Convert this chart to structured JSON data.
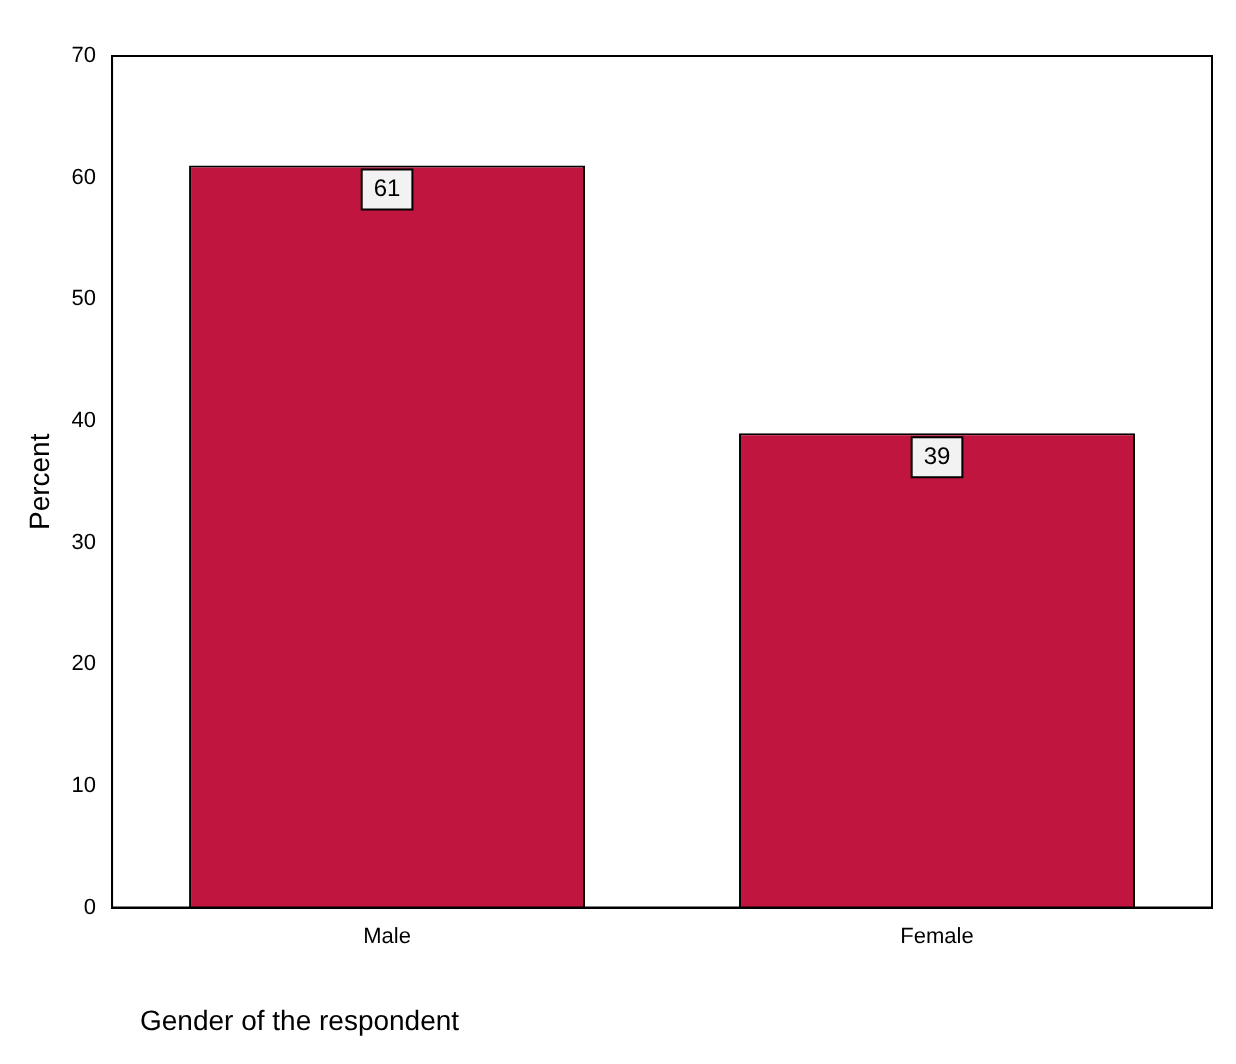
{
  "chart_data": {
    "type": "bar",
    "categories": [
      "Male",
      "Female"
    ],
    "values": [
      61,
      39
    ],
    "color": "#c0153f",
    "ylim": [
      0,
      70
    ],
    "yticks": [
      0,
      10,
      20,
      30,
      40,
      50,
      60,
      70
    ],
    "ylabel": "Percent",
    "xlabel": "Gender of the respondent",
    "data_labels": true,
    "grid": false,
    "legend": false
  }
}
